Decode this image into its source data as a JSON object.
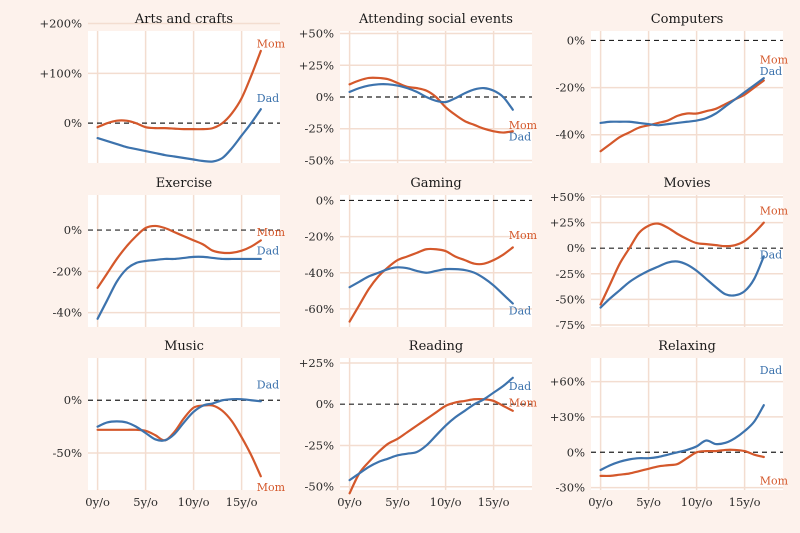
{
  "colors": {
    "mom": "#d4582b",
    "dad": "#3d73ad",
    "background": "#fdf2ec",
    "plot_bg": "#ffffff",
    "grid": "#f3ddd0"
  },
  "chart_data": [
    {
      "type": "line",
      "title": "Arts and crafts",
      "ylim": [
        -80,
        185
      ],
      "yticks": [
        0,
        100,
        200
      ],
      "yticklabels": [
        "0%",
        "+100%",
        "+200%"
      ],
      "xticks": [
        0,
        5,
        10,
        15
      ],
      "xticklabels": [
        "",
        "",
        "",
        ""
      ],
      "series": [
        {
          "name": "Mom",
          "x": [
            0,
            1,
            2,
            3,
            4,
            5,
            6,
            7,
            8,
            9,
            10,
            11,
            12,
            13,
            14,
            15,
            16,
            17
          ],
          "values": [
            -8,
            0,
            5,
            5,
            0,
            -8,
            -10,
            -10,
            -11,
            -12,
            -12,
            -12,
            -10,
            0,
            20,
            50,
            95,
            145
          ],
          "label_y": 160
        },
        {
          "name": "Dad",
          "x": [
            0,
            1,
            2,
            3,
            4,
            5,
            6,
            7,
            8,
            9,
            10,
            11,
            12,
            13,
            14,
            15,
            16,
            17
          ],
          "values": [
            -30,
            -36,
            -42,
            -48,
            -52,
            -56,
            -60,
            -64,
            -67,
            -70,
            -73,
            -76,
            -77,
            -70,
            -50,
            -25,
            0,
            28
          ],
          "label_y": 50
        }
      ]
    },
    {
      "type": "line",
      "title": "Attending social events",
      "ylim": [
        -52,
        52
      ],
      "yticks": [
        -50,
        -25,
        0,
        25,
        50
      ],
      "yticklabels": [
        "-50%",
        "-25%",
        "0%",
        "+25%",
        "+50%"
      ],
      "xticks": [
        0,
        5,
        10,
        15
      ],
      "xticklabels": [
        "",
        "",
        "",
        ""
      ],
      "series": [
        {
          "name": "Mom",
          "x": [
            0,
            1,
            2,
            3,
            4,
            5,
            6,
            7,
            8,
            9,
            10,
            11,
            12,
            13,
            14,
            15,
            16,
            17
          ],
          "values": [
            10,
            13,
            15,
            15,
            14,
            11,
            8,
            7,
            5,
            0,
            -8,
            -14,
            -19,
            -22,
            -25,
            -27,
            -28,
            -27
          ],
          "label_y": -22
        },
        {
          "name": "Dad",
          "x": [
            0,
            1,
            2,
            3,
            4,
            5,
            6,
            7,
            8,
            9,
            10,
            11,
            12,
            13,
            14,
            15,
            16,
            17
          ],
          "values": [
            4,
            7,
            9,
            10,
            10,
            9,
            7,
            4,
            0,
            -3,
            -4,
            -1,
            3,
            6,
            7,
            5,
            0,
            -10
          ],
          "label_y": -31
        }
      ]
    },
    {
      "type": "line",
      "title": "Computers",
      "ylim": [
        -52,
        4
      ],
      "yticks": [
        0,
        -20,
        -40
      ],
      "yticklabels": [
        "0%",
        "-20%",
        "-40%"
      ],
      "xticks": [
        0,
        5,
        10,
        15
      ],
      "xticklabels": [
        "",
        "",
        "",
        ""
      ],
      "series": [
        {
          "name": "Mom",
          "x": [
            0,
            1,
            2,
            3,
            4,
            5,
            6,
            7,
            8,
            9,
            10,
            11,
            12,
            13,
            14,
            15,
            16,
            17
          ],
          "values": [
            -47,
            -44,
            -41,
            -39,
            -37,
            -36,
            -35,
            -34,
            -32,
            -31,
            -31,
            -30,
            -29,
            -27,
            -25,
            -23,
            -20,
            -17
          ],
          "label_y": -8
        },
        {
          "name": "Dad",
          "x": [
            0,
            1,
            2,
            3,
            4,
            5,
            6,
            7,
            8,
            9,
            10,
            11,
            12,
            13,
            14,
            15,
            16,
            17
          ],
          "values": [
            -35,
            -34.5,
            -34.5,
            -34.5,
            -35,
            -35.5,
            -36,
            -35.5,
            -35,
            -34.5,
            -34,
            -33,
            -31,
            -28,
            -25,
            -22,
            -19,
            -16
          ],
          "label_y": -13
        }
      ]
    },
    {
      "type": "line",
      "title": "Exercise",
      "ylim": [
        -47,
        17
      ],
      "yticks": [
        0,
        -20,
        -40
      ],
      "yticklabels": [
        "0%",
        "-20%",
        "-40%"
      ],
      "xticks": [
        0,
        5,
        10,
        15
      ],
      "xticklabels": [
        "",
        "",
        "",
        ""
      ],
      "series": [
        {
          "name": "Mom",
          "x": [
            0,
            1,
            2,
            3,
            4,
            5,
            6,
            7,
            8,
            9,
            10,
            11,
            12,
            13,
            14,
            15,
            16,
            17
          ],
          "values": [
            -28,
            -21,
            -14,
            -8,
            -3,
            1,
            2,
            1,
            -1,
            -3,
            -5,
            -7,
            -10,
            -11,
            -11,
            -10,
            -8,
            -5
          ],
          "label_y": -1
        },
        {
          "name": "Dad",
          "x": [
            0,
            1,
            2,
            3,
            4,
            5,
            6,
            7,
            8,
            9,
            10,
            11,
            12,
            13,
            14,
            15,
            16,
            17
          ],
          "values": [
            -43,
            -34,
            -25,
            -19,
            -16,
            -15,
            -14.5,
            -14,
            -14,
            -13.5,
            -13,
            -13,
            -13.5,
            -14,
            -14,
            -14,
            -14,
            -14
          ],
          "label_y": -10
        }
      ]
    },
    {
      "type": "line",
      "title": "Gaming",
      "ylim": [
        -70,
        3
      ],
      "yticks": [
        0,
        -20,
        -40,
        -60
      ],
      "yticklabels": [
        "0%",
        "-20%",
        "-40%",
        "-60%"
      ],
      "xticks": [
        0,
        5,
        10,
        15
      ],
      "xticklabels": [
        "",
        "",
        "",
        ""
      ],
      "series": [
        {
          "name": "Mom",
          "x": [
            0,
            1,
            2,
            3,
            4,
            5,
            6,
            7,
            8,
            9,
            10,
            11,
            12,
            13,
            14,
            15,
            16,
            17
          ],
          "values": [
            -67,
            -58,
            -49,
            -42,
            -37,
            -33,
            -31,
            -29,
            -27,
            -27,
            -28,
            -31,
            -33,
            -35,
            -35,
            -33,
            -30,
            -26
          ],
          "label_y": -19
        },
        {
          "name": "Dad",
          "x": [
            0,
            1,
            2,
            3,
            4,
            5,
            6,
            7,
            8,
            9,
            10,
            11,
            12,
            13,
            14,
            15,
            16,
            17
          ],
          "values": [
            -48,
            -45,
            -42,
            -40,
            -38,
            -37,
            -37.5,
            -39,
            -40,
            -39,
            -38,
            -38,
            -38.5,
            -40,
            -43,
            -47,
            -52,
            -57
          ],
          "label_y": -61
        }
      ]
    },
    {
      "type": "line",
      "title": "Movies",
      "ylim": [
        -77,
        52
      ],
      "yticks": [
        -75,
        -50,
        -25,
        0,
        25,
        50
      ],
      "yticklabels": [
        "-75%",
        "-50%",
        "-25%",
        "0%",
        "+25%",
        "+50%"
      ],
      "xticks": [
        0,
        5,
        10,
        15
      ],
      "xticklabels": [
        "",
        "",
        "",
        ""
      ],
      "series": [
        {
          "name": "Mom",
          "x": [
            0,
            1,
            2,
            3,
            4,
            5,
            6,
            7,
            8,
            9,
            10,
            11,
            12,
            13,
            14,
            15,
            16,
            17
          ],
          "values": [
            -55,
            -35,
            -15,
            0,
            15,
            22,
            24,
            20,
            14,
            9,
            5,
            4,
            3,
            2,
            3,
            7,
            15,
            25
          ],
          "label_y": 37
        },
        {
          "name": "Dad",
          "x": [
            0,
            1,
            2,
            3,
            4,
            5,
            6,
            7,
            8,
            9,
            10,
            11,
            12,
            13,
            14,
            15,
            16,
            17
          ],
          "values": [
            -58,
            -49,
            -41,
            -33,
            -27,
            -22,
            -18,
            -14,
            -13,
            -16,
            -22,
            -30,
            -38,
            -45,
            -46,
            -42,
            -30,
            -8
          ],
          "label_y": -6
        }
      ]
    },
    {
      "type": "line",
      "title": "Music",
      "ylim": [
        -85,
        40
      ],
      "yticks": [
        0,
        -50
      ],
      "yticklabels": [
        "0%",
        "-50%"
      ],
      "xticks": [
        0,
        5,
        10,
        15
      ],
      "xticklabels": [
        "0y/o",
        "5y/o",
        "10y/o",
        "15y/o"
      ],
      "series": [
        {
          "name": "Mom",
          "x": [
            0,
            1,
            2,
            3,
            4,
            5,
            6,
            7,
            8,
            9,
            10,
            11,
            12,
            13,
            14,
            15,
            16,
            17
          ],
          "values": [
            -28,
            -28,
            -28,
            -28,
            -28,
            -29,
            -33,
            -38,
            -30,
            -17,
            -7,
            -5,
            -5,
            -10,
            -20,
            -35,
            -52,
            -72
          ],
          "label_y": -82
        },
        {
          "name": "Dad",
          "x": [
            0,
            1,
            2,
            3,
            4,
            5,
            6,
            7,
            8,
            9,
            10,
            11,
            12,
            13,
            14,
            15,
            16,
            17
          ],
          "values": [
            -25,
            -21,
            -20,
            -21,
            -25,
            -31,
            -37,
            -38,
            -32,
            -21,
            -11,
            -5,
            -3,
            0,
            1,
            1,
            0,
            -1
          ],
          "label_y": 15
        }
      ]
    },
    {
      "type": "line",
      "title": "Reading",
      "ylim": [
        -52,
        28
      ],
      "yticks": [
        -50,
        -25,
        0,
        25
      ],
      "yticklabels": [
        "-50%",
        "-25%",
        "0%",
        "+25%"
      ],
      "xticks": [
        0,
        5,
        10,
        15
      ],
      "xticklabels": [
        "0y/o",
        "5y/o",
        "10y/o",
        "15y/o"
      ],
      "series": [
        {
          "name": "Mom",
          "x": [
            0,
            1,
            2,
            3,
            4,
            5,
            6,
            7,
            8,
            9,
            10,
            11,
            12,
            13,
            14,
            15,
            16,
            17
          ],
          "values": [
            -54,
            -42,
            -35,
            -29,
            -24,
            -21,
            -17,
            -13,
            -9,
            -5,
            -1,
            1,
            2,
            3,
            3,
            2,
            -1,
            -4
          ],
          "label_y": 1
        },
        {
          "name": "Dad",
          "x": [
            0,
            1,
            2,
            3,
            4,
            5,
            6,
            7,
            8,
            9,
            10,
            11,
            12,
            13,
            14,
            15,
            16,
            17
          ],
          "values": [
            -46,
            -42,
            -38,
            -35,
            -33,
            -31,
            -30,
            -29,
            -25,
            -19,
            -13,
            -8,
            -4,
            0,
            3,
            7,
            11,
            16
          ],
          "label_y": 11
        }
      ]
    },
    {
      "type": "line",
      "title": "Relaxing",
      "ylim": [
        -32,
        80
      ],
      "yticks": [
        -30,
        0,
        30,
        60
      ],
      "yticklabels": [
        "-30%",
        "0%",
        "+30%",
        "+60%"
      ],
      "xticks": [
        0,
        5,
        10,
        15
      ],
      "xticklabels": [
        "0y/o",
        "5y/o",
        "10y/o",
        "15y/o"
      ],
      "series": [
        {
          "name": "Mom",
          "x": [
            0,
            1,
            2,
            3,
            4,
            5,
            6,
            7,
            8,
            9,
            10,
            11,
            12,
            13,
            14,
            15,
            16,
            17
          ],
          "values": [
            -20,
            -20,
            -19,
            -18,
            -16,
            -14,
            -12,
            -11,
            -10,
            -5,
            0,
            1,
            1,
            2,
            2,
            1,
            -2,
            -4
          ],
          "label_y": -24
        },
        {
          "name": "Dad",
          "x": [
            0,
            1,
            2,
            3,
            4,
            5,
            6,
            7,
            8,
            9,
            10,
            11,
            12,
            13,
            14,
            15,
            16,
            17
          ],
          "values": [
            -15,
            -11,
            -8,
            -6,
            -5,
            -5,
            -4,
            -2,
            0,
            2,
            5,
            10,
            7,
            8,
            12,
            18,
            26,
            40
          ],
          "label_y": 70
        }
      ]
    }
  ]
}
